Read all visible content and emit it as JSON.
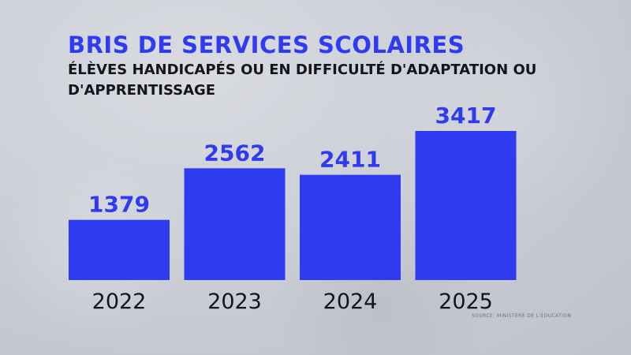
{
  "header": {
    "title": "BRIS DE SERVICES SCOLAIRES",
    "subtitle": "ÉLÈVES HANDICAPÉS OU EN DIFFICULTÉ D'ADAPTATION OU D'APPRENTISSAGE"
  },
  "footer": {
    "source": "SOURCE: MINISTÈRE DE L'ÉDUCATION"
  },
  "colors": {
    "bar": "#2f3bf0",
    "title": "#2f3bf0",
    "text": "#14151c"
  },
  "chart_data": {
    "type": "bar",
    "title": "BRIS DE SERVICES SCOLAIRES",
    "subtitle": "ÉLÈVES HANDICAPÉS OU EN DIFFICULTÉ D'ADAPTATION OU D'APPRENTISSAGE",
    "categories": [
      "2022",
      "2023",
      "2024",
      "2025"
    ],
    "values": [
      1379,
      2562,
      2411,
      3417
    ],
    "xlabel": "",
    "ylabel": "",
    "ylim": [
      0,
      3417
    ],
    "grid": false,
    "legend": "none"
  }
}
